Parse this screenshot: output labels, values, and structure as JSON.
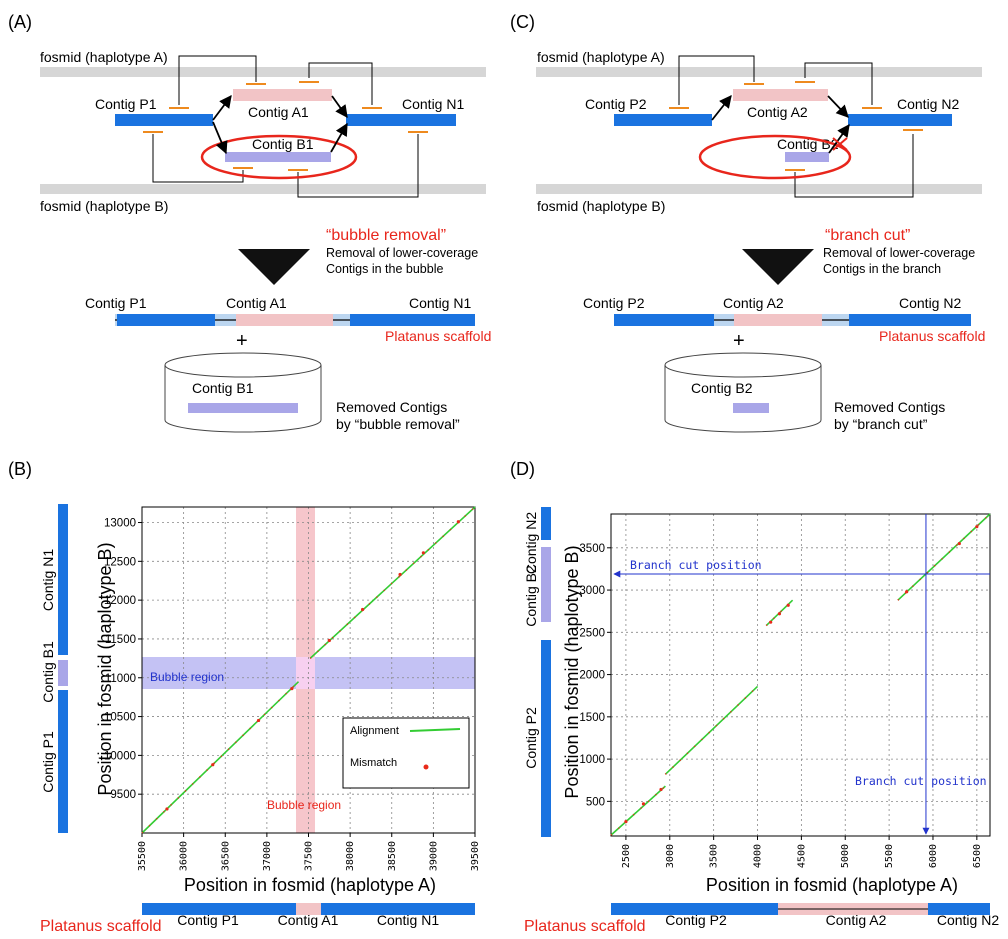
{
  "colors": {
    "contig_blue": "#1a73e0",
    "contig_pink": "#f2c4c6",
    "contig_lavender": "#a9a6e8",
    "fosmid_gray": "#d6d6d6",
    "tick_orange": "#ee8a1e",
    "red": "#e8261c",
    "alignment_green": "#33cc33",
    "mismatch_red": "#e82a1a",
    "bubble_blue_band": "#9e9ee8",
    "bubble_pink_band": "#f0a0a8",
    "annot_blue": "#2233cc"
  },
  "panelA": {
    "label": "(A)",
    "fosmid_a": "fosmid (haplotype A)",
    "fosmid_b": "fosmid (haplotype B)",
    "contig_p": "Contig P1",
    "contig_a": "Contig A1",
    "contig_b": "Contig B1",
    "contig_n": "Contig N1",
    "op_title": "“bubble removal”",
    "op_desc1": "Removal of lower-coverage",
    "op_desc2": "Contigs in the bubble",
    "plus": "+",
    "scaffold_label": "Platanus scaffold",
    "removed1": "Removed Contigs",
    "removed2": "by “bubble removal”"
  },
  "panelC": {
    "label": "(C)",
    "fosmid_a": "fosmid (haplotype A)",
    "fosmid_b": "fosmid (haplotype B)",
    "contig_p": "Contig P2",
    "contig_a": "Contig A2",
    "contig_b": "Contig B2",
    "contig_n": "Contig N2",
    "op_title": "“branch cut”",
    "op_desc1": "Removal of lower-coverage",
    "op_desc2": "Contigs in the branch",
    "plus": "+",
    "scaffold_label": "Platanus scaffold",
    "removed1": "Removed Contigs",
    "removed2": "by “branch cut”"
  },
  "panelB": {
    "label": "(B)",
    "xlabel": "Position in fosmid (haplotype A)",
    "ylabel": "Position in fosmid (haplotype B)",
    "bubble_label_h": "Bubble region",
    "bubble_label_v": "Bubble region",
    "legend_alignment": "Alignment",
    "legend_mismatch": "Mismatch",
    "side_contigs": [
      "Contig N1",
      "Contig B1",
      "Contig P1"
    ],
    "bottom_contigs": [
      "Contig P1",
      "Contig A1",
      "Contig N1"
    ],
    "scaffold_label": "Platanus scaffold"
  },
  "panelD": {
    "label": "(D)",
    "xlabel": "Position in fosmid (haplotype A)",
    "ylabel": "Position in fosmid (haplotype B)",
    "branch_label_h": "Branch cut position",
    "branch_label_v": "Branch cut position",
    "side_contigs": [
      "Contig N2",
      "Contig B2",
      "Contig P2"
    ],
    "bottom_contigs": [
      "Contig P2",
      "Contig A2",
      "Contig N2"
    ],
    "scaffold_label": "Platanus scaffold"
  },
  "chart_data": [
    {
      "type": "scatter",
      "panel": "B",
      "xlabel": "Position in fosmid (haplotype A)",
      "ylabel": "Position in fosmid (haplotype B)",
      "xlim": [
        35500,
        39500
      ],
      "ylim": [
        9000,
        13200
      ],
      "xticks": [
        35500,
        36000,
        36500,
        37000,
        37500,
        38000,
        38500,
        39000,
        39500
      ],
      "yticks": [
        9500,
        10000,
        10500,
        11000,
        11500,
        12000,
        12500,
        13000
      ],
      "grid": true,
      "legend_position": "bottom-right",
      "series": [
        {
          "name": "Alignment",
          "segments": [
            {
              "x": [
                35500,
                37380
              ],
              "y": [
                9000,
                10950
              ]
            },
            {
              "x": [
                37520,
                39500
              ],
              "y": [
                11250,
                13200
              ]
            }
          ]
        },
        {
          "name": "Mismatch",
          "points": [
            [
              35800,
              9310
            ],
            [
              36350,
              9880
            ],
            [
              36900,
              10450
            ],
            [
              37300,
              10860
            ],
            [
              37750,
              11480
            ],
            [
              38150,
              11880
            ],
            [
              38600,
              12330
            ],
            [
              38880,
              12610
            ],
            [
              39300,
              13010
            ]
          ]
        }
      ],
      "annotations": [
        {
          "text": "Bubble region",
          "axis": "y",
          "range": [
            10900,
            11280
          ]
        },
        {
          "text": "Bubble region",
          "axis": "x",
          "range": [
            37380,
            37580
          ]
        }
      ]
    },
    {
      "type": "scatter",
      "panel": "D",
      "xlabel": "Position in fosmid (haplotype A)",
      "ylabel": "Position in fosmid (haplotype B)",
      "xlim": [
        2330,
        6650
      ],
      "ylim": [
        90,
        3900
      ],
      "xticks": [
        2500,
        3000,
        3500,
        4000,
        4500,
        5000,
        5500,
        6000,
        6500
      ],
      "yticks": [
        500,
        1000,
        1500,
        2000,
        2500,
        3000,
        3500
      ],
      "grid": true,
      "series": [
        {
          "name": "Alignment",
          "segments": [
            {
              "x": [
                2330,
                2950
              ],
              "y": [
                100,
                680
              ]
            },
            {
              "x": [
                2950,
                4000
              ],
              "y": [
                820,
                1860
              ]
            },
            {
              "x": [
                4100,
                4400
              ],
              "y": [
                2580,
                2880
              ]
            },
            {
              "x": [
                5600,
                6650
              ],
              "y": [
                2880,
                3900
              ]
            }
          ]
        },
        {
          "name": "Mismatch",
          "points": [
            [
              2500,
              260
            ],
            [
              2700,
              470
            ],
            [
              2900,
              640
            ],
            [
              4150,
              2620
            ],
            [
              4250,
              2720
            ],
            [
              4350,
              2820
            ],
            [
              5700,
              2980
            ],
            [
              6300,
              3550
            ],
            [
              6500,
              3750
            ]
          ]
        }
      ],
      "annotations": [
        {
          "text": "Branch cut position",
          "axis": "y",
          "value": 3190
        },
        {
          "text": "Branch cut position",
          "axis": "x",
          "value": 5920
        }
      ]
    }
  ]
}
